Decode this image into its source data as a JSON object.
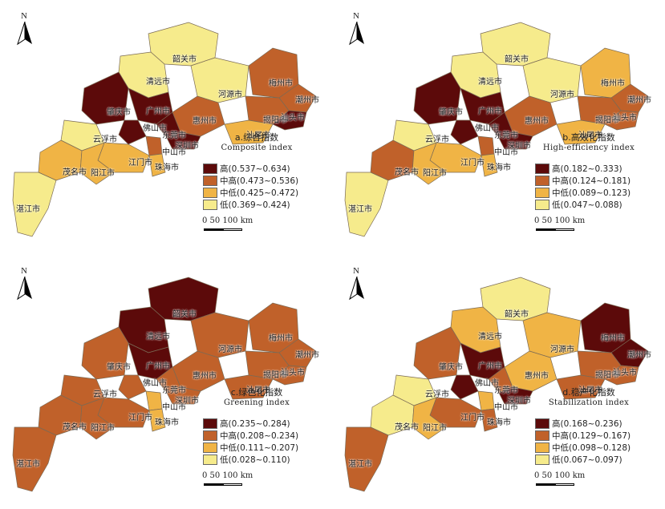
{
  "north_label": "N",
  "colors": {
    "high": "#5c0a0a",
    "mid_high": "#c0612a",
    "mid_low": "#f0b445",
    "low": "#f6eb8c",
    "border": "#7a6a55"
  },
  "panels": [
    {
      "id": "a",
      "title_zh": "a.综合指数",
      "title_en": "Composite index",
      "legend": [
        "高(0.537~0.634)",
        "中高(0.473~0.536)",
        "中低(0.425~0.472)",
        "低(0.369~0.424)"
      ],
      "scale": "0  50 100 km",
      "cities": [
        "韶关市",
        "清远市",
        "河源市",
        "梅州市",
        "潮州市",
        "肇庆市",
        "广州市",
        "惠州市",
        "揭阳市",
        "汕头市",
        "云浮市",
        "佛山市",
        "东莞市",
        "汕尾市",
        "中山市",
        "深圳市",
        "江门市",
        "珠海市",
        "茂名市",
        "阳江市",
        "湛江市"
      ]
    },
    {
      "id": "b",
      "title_zh": "b.高效化指数",
      "title_en": "High-efficiency index",
      "legend": [
        "高(0.182~0.333)",
        "中高(0.124~0.181)",
        "中低(0.089~0.123)",
        "低(0.047~0.088)"
      ],
      "scale": "0  50 100 km",
      "cities": [
        "韶关市",
        "清远市",
        "河源市",
        "梅州市",
        "潮州市",
        "肇庆市",
        "广州市",
        "惠州市",
        "揭阳市",
        "汕头市",
        "云浮市",
        "佛山市",
        "东莞市",
        "汕尾市",
        "中山市",
        "深圳市",
        "江门市",
        "珠海市",
        "茂名市",
        "阳江市",
        "湛江市"
      ]
    },
    {
      "id": "c",
      "title_zh": "c.绿色化指数",
      "title_en": "Greening index",
      "legend": [
        "高(0.235~0.284)",
        "中高(0.208~0.234)",
        "中低(0.111~0.207)",
        "低(0.028~0.110)"
      ],
      "scale": "0  50 100 km",
      "cities": [
        "韶关市",
        "清远市",
        "河源市",
        "梅州市",
        "潮州市",
        "肇庆市",
        "广州市",
        "惠州市",
        "揭阳市",
        "汕头市",
        "云浮市",
        "佛山市",
        "东莞市",
        "汕尾市",
        "中山市",
        "深圳市",
        "江门市",
        "珠海市",
        "茂名市",
        "阳江市",
        "湛江市"
      ]
    },
    {
      "id": "d",
      "title_zh": "d.稳产化指数",
      "title_en": "Stabilization index",
      "legend": [
        "高(0.168~0.236)",
        "中高(0.129~0.167)",
        "中低(0.098~0.128)",
        "低(0.067~0.097)"
      ],
      "scale": "0  50 100 km",
      "cities": [
        "韶关市",
        "清远市",
        "河源市",
        "梅州市",
        "潮州市",
        "肇庆市",
        "广州市",
        "惠州市",
        "揭阳市",
        "汕头市",
        "云浮市",
        "佛山市",
        "东莞市",
        "汕尾市",
        "中山市",
        "深圳市",
        "江门市",
        "珠海市",
        "茂名市",
        "阳江市",
        "湛江市"
      ]
    }
  ]
}
